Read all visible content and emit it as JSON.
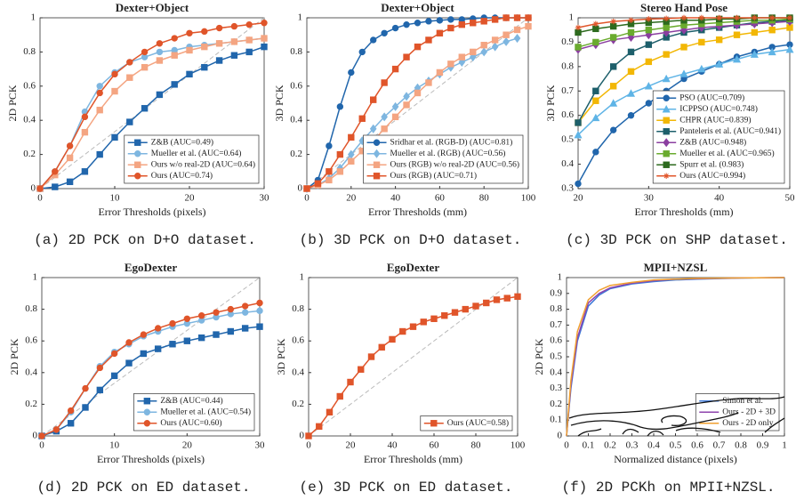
{
  "chart_data": [
    {
      "type": "line",
      "title": "Dexter+Object",
      "caption": "(a) 2D PCK on D+O dataset.",
      "xlabel": "Error Thresholds (pixels)",
      "ylabel": "2D PCK",
      "x": [
        0,
        2,
        4,
        6,
        8,
        10,
        12,
        14,
        16,
        18,
        20,
        22,
        24,
        26,
        28,
        30
      ],
      "xlim": [
        0,
        30
      ],
      "xticks": [
        0,
        10,
        20,
        30
      ],
      "ylim": [
        0,
        1
      ],
      "yticks": [
        0,
        0.2,
        0.4,
        0.6,
        0.8,
        1
      ],
      "grid": false,
      "legend": "lower right",
      "series": [
        {
          "name": "Z&B (AUC=0.49)",
          "color": "#2166ac",
          "marker": "square",
          "values": [
            0,
            0.01,
            0.04,
            0.1,
            0.2,
            0.3,
            0.39,
            0.47,
            0.55,
            0.61,
            0.67,
            0.71,
            0.75,
            0.78,
            0.8,
            0.83
          ]
        },
        {
          "name": "Mueller et al. (AUC=0.64)",
          "color": "#7eb6e0",
          "marker": "circle",
          "values": [
            0,
            0.1,
            0.25,
            0.45,
            0.6,
            0.68,
            0.74,
            0.77,
            0.8,
            0.81,
            0.83,
            0.84,
            0.85,
            0.86,
            0.87,
            0.88
          ]
        },
        {
          "name": "Ours w/o real-2D (AUC=0.64)",
          "color": "#f4a582",
          "marker": "square",
          "values": [
            0,
            0.08,
            0.18,
            0.33,
            0.46,
            0.57,
            0.65,
            0.71,
            0.75,
            0.78,
            0.81,
            0.83,
            0.85,
            0.86,
            0.87,
            0.88
          ]
        },
        {
          "name": "Ours (AUC=0.74)",
          "color": "#e0552a",
          "marker": "circle",
          "values": [
            0,
            0.1,
            0.25,
            0.42,
            0.56,
            0.67,
            0.74,
            0.8,
            0.85,
            0.88,
            0.91,
            0.92,
            0.94,
            0.95,
            0.96,
            0.97
          ]
        }
      ]
    },
    {
      "type": "line",
      "title": "Dexter+Object",
      "caption": "(b) 3D PCK on D+O dataset.",
      "xlabel": "Error Thresholds (mm)",
      "ylabel": "3D PCK",
      "x": [
        0,
        5,
        10,
        15,
        20,
        25,
        30,
        35,
        40,
        45,
        50,
        55,
        60,
        65,
        70,
        75,
        80,
        85,
        90,
        95,
        100
      ],
      "xlim": [
        0,
        100
      ],
      "xticks": [
        0,
        20,
        40,
        60,
        80,
        100
      ],
      "ylim": [
        0,
        1
      ],
      "yticks": [
        0,
        0.2,
        0.4,
        0.6,
        0.8,
        1
      ],
      "grid": false,
      "legend": "lower right",
      "series": [
        {
          "name": "Sridhar et al. (RGB-D) (AUC=0.81)",
          "color": "#2166ac",
          "marker": "circle",
          "values": [
            0,
            0.05,
            0.25,
            0.48,
            0.68,
            0.8,
            0.87,
            0.91,
            0.94,
            0.96,
            0.97,
            0.98,
            0.985,
            0.99,
            0.99,
            0.995,
            1,
            1,
            1,
            1,
            1
          ]
        },
        {
          "name": "Mueller et al. (RGB) (AUC=0.56)",
          "color": "#7eb6e0",
          "marker": "diamond",
          "values": [
            0,
            0.02,
            0.06,
            0.12,
            0.2,
            0.28,
            0.35,
            0.42,
            0.48,
            0.54,
            0.59,
            0.63,
            0.67,
            0.71,
            0.74,
            0.77,
            0.8,
            0.83,
            0.86,
            0.88,
            null
          ]
        },
        {
          "name": "Ours (RGB) w/o real-2D (AUC=0.56)",
          "color": "#f4a582",
          "marker": "square",
          "values": [
            0,
            0.02,
            0.05,
            0.1,
            0.16,
            0.22,
            0.28,
            0.35,
            0.42,
            0.49,
            0.56,
            0.62,
            0.68,
            0.73,
            0.77,
            0.8,
            0.84,
            0.87,
            0.9,
            0.93,
            0.95
          ]
        },
        {
          "name": "Ours (RGB) (AUC=0.71)",
          "color": "#e0552a",
          "marker": "square",
          "values": [
            0,
            0.03,
            0.1,
            0.2,
            0.3,
            0.41,
            0.52,
            0.62,
            0.7,
            0.77,
            0.83,
            0.87,
            0.91,
            0.94,
            0.96,
            0.97,
            0.98,
            0.99,
            1,
            1,
            1
          ]
        }
      ]
    },
    {
      "type": "line",
      "title": "Stereo Hand Pose",
      "caption": "(c) 3D PCK on SHP dataset.",
      "xlabel": "Error Thresholds (mm)",
      "ylabel": "3D PCK",
      "x": [
        20,
        22.5,
        25,
        27.5,
        30,
        32.5,
        35,
        37.5,
        40,
        42.5,
        45,
        47.5,
        50
      ],
      "xlim": [
        20,
        50
      ],
      "xticks": [
        20,
        30,
        40,
        50
      ],
      "ylim": [
        0.3,
        1
      ],
      "yticks": [
        0.3,
        0.4,
        0.5,
        0.6,
        0.7,
        0.8,
        0.9,
        1
      ],
      "grid": false,
      "legend": "lower right",
      "series": [
        {
          "name": "PSO (AUC=0.709)",
          "color": "#2166ac",
          "marker": "circle",
          "values": [
            0.32,
            0.45,
            0.54,
            0.6,
            0.65,
            0.7,
            0.75,
            0.78,
            0.81,
            0.84,
            0.86,
            0.88,
            0.89
          ]
        },
        {
          "name": "ICPPSO (AUC=0.748)",
          "color": "#5fb4e6",
          "marker": "triangle",
          "values": [
            0.52,
            0.59,
            0.65,
            0.69,
            0.72,
            0.75,
            0.77,
            0.79,
            0.81,
            0.83,
            0.85,
            0.86,
            0.87
          ]
        },
        {
          "name": "CHPR (AUC=0.839)",
          "color": "#f2b705",
          "marker": "square",
          "values": [
            0.57,
            0.66,
            0.72,
            0.78,
            0.82,
            0.85,
            0.88,
            0.9,
            0.91,
            0.93,
            0.94,
            0.95,
            0.96
          ]
        },
        {
          "name": "Panteleris et al. (AUC=0.941)",
          "color": "#1d5f6b",
          "marker": "square",
          "values": [
            0.57,
            0.7,
            0.8,
            0.86,
            0.89,
            0.92,
            0.94,
            0.95,
            0.96,
            0.97,
            0.98,
            0.985,
            0.99
          ]
        },
        {
          "name": "Z&B (AUC=0.948)",
          "color": "#8b3fa0",
          "marker": "diamond",
          "values": [
            0.87,
            0.89,
            0.91,
            0.92,
            0.93,
            0.94,
            0.95,
            0.96,
            0.965,
            0.97,
            0.975,
            0.98,
            0.985
          ]
        },
        {
          "name": "Mueller et al. (AUC=0.965)",
          "color": "#6aab2e",
          "marker": "square",
          "values": [
            0.88,
            0.9,
            0.92,
            0.94,
            0.95,
            0.96,
            0.97,
            0.975,
            0.98,
            0.985,
            0.99,
            0.99,
            0.995
          ]
        },
        {
          "name": "Spurr et al. (0.983)",
          "color": "#2d6a1e",
          "marker": "square",
          "values": [
            0.94,
            0.955,
            0.965,
            0.975,
            0.98,
            0.985,
            0.99,
            0.99,
            0.995,
            0.995,
            1,
            1,
            1
          ]
        },
        {
          "name": "Ours (AUC=0.994)",
          "color": "#e0552a",
          "marker": "star",
          "values": [
            0.96,
            0.975,
            0.985,
            0.99,
            0.995,
            0.997,
            1,
            1,
            1,
            1,
            1,
            1,
            1
          ]
        }
      ]
    },
    {
      "type": "line",
      "title": "EgoDexter",
      "caption": "(d) 2D PCK on ED dataset.",
      "xlabel": "Error Thresholds (pixels)",
      "ylabel": "2D PCK",
      "x": [
        0,
        2,
        4,
        6,
        8,
        10,
        12,
        14,
        16,
        18,
        20,
        22,
        24,
        26,
        28,
        30
      ],
      "xlim": [
        0,
        30
      ],
      "xticks": [
        0,
        10,
        20,
        30
      ],
      "ylim": [
        0,
        1
      ],
      "yticks": [
        0,
        0.2,
        0.4,
        0.6,
        0.8,
        1
      ],
      "grid": false,
      "legend": "lower right",
      "series": [
        {
          "name": "Z&B (AUC=0.44)",
          "color": "#2166ac",
          "marker": "square",
          "values": [
            0,
            0.03,
            0.08,
            0.18,
            0.29,
            0.38,
            0.46,
            0.52,
            0.55,
            0.58,
            0.6,
            0.62,
            0.64,
            0.66,
            0.68,
            0.69
          ]
        },
        {
          "name": "Mueller et al. (AUC=0.54)",
          "color": "#7eb6e0",
          "marker": "circle",
          "values": [
            0,
            0.04,
            0.15,
            0.3,
            0.44,
            0.53,
            0.58,
            0.63,
            0.66,
            0.69,
            0.71,
            0.73,
            0.75,
            0.77,
            0.78,
            0.79
          ]
        },
        {
          "name": "Ours (AUC=0.60)",
          "color": "#e0552a",
          "marker": "circle",
          "values": [
            0,
            0.04,
            0.16,
            0.3,
            0.43,
            0.52,
            0.59,
            0.64,
            0.68,
            0.71,
            0.74,
            0.76,
            0.78,
            0.8,
            0.82,
            0.84
          ]
        }
      ]
    },
    {
      "type": "line",
      "title": "EgoDexter",
      "caption": "(e) 3D PCK on ED dataset.",
      "xlabel": "Error Thresholds (mm)",
      "ylabel": "3D PCK",
      "x": [
        0,
        5,
        10,
        15,
        20,
        25,
        30,
        35,
        40,
        45,
        50,
        55,
        60,
        65,
        70,
        75,
        80,
        85,
        90,
        95,
        100
      ],
      "xlim": [
        0,
        100
      ],
      "xticks": [
        0,
        20,
        40,
        60,
        80,
        100
      ],
      "ylim": [
        0,
        1
      ],
      "yticks": [
        0,
        0.2,
        0.4,
        0.6,
        0.8,
        1
      ],
      "grid": false,
      "legend": "lower right",
      "series": [
        {
          "name": "Ours (AUC=0.58)",
          "color": "#e0552a",
          "marker": "square",
          "values": [
            0,
            0.06,
            0.15,
            0.25,
            0.34,
            0.42,
            0.5,
            0.56,
            0.61,
            0.66,
            0.69,
            0.72,
            0.74,
            0.76,
            0.78,
            0.8,
            0.82,
            0.84,
            0.86,
            0.87,
            0.88
          ]
        }
      ]
    },
    {
      "type": "line",
      "title": "MPII+NZSL",
      "caption": "(f) 2D PCKh on MPII+NZSL.",
      "xlabel": "Normalized distance (pixels)",
      "ylabel": "2D PCK",
      "x": [
        0,
        0.02,
        0.05,
        0.1,
        0.15,
        0.2,
        0.3,
        0.4,
        0.5,
        0.6,
        0.8,
        1
      ],
      "xlim": [
        0,
        1
      ],
      "xticks": [
        0,
        0.1,
        0.2,
        0.3,
        0.4,
        0.5,
        0.6,
        0.7,
        0.8,
        0.9,
        1
      ],
      "ylim": [
        0,
        1
      ],
      "yticks": [
        0,
        0.1,
        0.2,
        0.3,
        0.4,
        0.5,
        0.6,
        0.7,
        0.8,
        0.9,
        1
      ],
      "grid": false,
      "legend": "lower right",
      "series": [
        {
          "name": "Simon et al.",
          "color": "#3c78d8",
          "values": [
            0,
            0.3,
            0.6,
            0.82,
            0.89,
            0.93,
            0.96,
            0.975,
            0.985,
            0.99,
            0.997,
            1
          ]
        },
        {
          "name": "Ours - 2D + 3D",
          "color": "#8e44ad",
          "values": [
            0,
            0.32,
            0.62,
            0.84,
            0.9,
            0.935,
            0.965,
            0.98,
            0.99,
            0.993,
            0.998,
            1
          ]
        },
        {
          "name": "Ours - 2D only",
          "color": "#f0a030",
          "values": [
            0,
            0.35,
            0.66,
            0.86,
            0.92,
            0.95,
            0.97,
            0.985,
            0.99,
            0.995,
            0.998,
            1
          ]
        }
      ]
    }
  ]
}
